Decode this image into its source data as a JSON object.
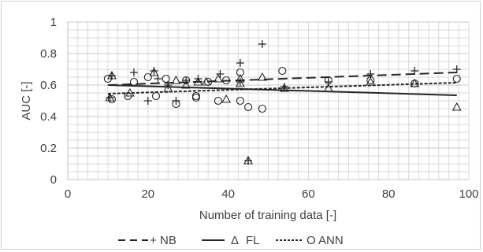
{
  "chart_data": {
    "type": "scatter",
    "title": "",
    "xlabel": "Number of training data [-]",
    "ylabel": "AUC [-]",
    "xlim": [
      0,
      100
    ],
    "ylim": [
      0,
      1
    ],
    "x_ticks": [
      "0",
      "20",
      "40",
      "60",
      "80",
      "100"
    ],
    "y_ticks": [
      "0",
      "0.2",
      "0.4",
      "0.6",
      "0.8",
      "1"
    ],
    "x_tick_values": [
      0,
      20,
      40,
      60,
      80,
      100
    ],
    "y_tick_values": [
      0,
      0.2,
      0.4,
      0.6,
      0.8,
      1
    ],
    "grid": "vertical and horizontal light gridlines",
    "legend_position": "bottom",
    "series": [
      {
        "name": "NB",
        "marker": "plus",
        "line_style": "dashed",
        "trendline": [
          [
            10,
            0.6
          ],
          [
            97,
            0.68
          ]
        ],
        "points": [
          [
            10.5,
            0.52
          ],
          [
            11,
            0.66
          ],
          [
            16.5,
            0.68
          ],
          [
            20,
            0.5
          ],
          [
            21.5,
            0.69
          ],
          [
            22.5,
            0.64
          ],
          [
            25,
            0.6
          ],
          [
            27,
            0.5
          ],
          [
            29.5,
            0.63
          ],
          [
            32.5,
            0.64
          ],
          [
            38,
            0.67
          ],
          [
            43,
            0.74
          ],
          [
            43,
            0.62
          ],
          [
            45,
            0.12
          ],
          [
            48.5,
            0.86
          ],
          [
            54,
            0.59
          ],
          [
            65,
            0.62
          ],
          [
            75.5,
            0.67
          ],
          [
            86.5,
            0.69
          ],
          [
            97,
            0.7
          ]
        ]
      },
      {
        "name": "FL",
        "marker": "triangle",
        "line_style": "solid",
        "trendline": [
          [
            10,
            0.6
          ],
          [
            97,
            0.535
          ]
        ],
        "points": [
          [
            10.5,
            0.52
          ],
          [
            11,
            0.66
          ],
          [
            15.5,
            0.55
          ],
          [
            21.5,
            0.68
          ],
          [
            25,
            0.58
          ],
          [
            27,
            0.63
          ],
          [
            29.5,
            0.6
          ],
          [
            32.5,
            0.62
          ],
          [
            34.5,
            0.62
          ],
          [
            37.5,
            0.64
          ],
          [
            39.5,
            0.51
          ],
          [
            43,
            0.61
          ],
          [
            43,
            0.64
          ],
          [
            45,
            0.12
          ],
          [
            48.5,
            0.65
          ],
          [
            54,
            0.58
          ],
          [
            65,
            0.58
          ],
          [
            75.5,
            0.62
          ],
          [
            86.5,
            0.61
          ],
          [
            97,
            0.46
          ]
        ]
      },
      {
        "name": "ANN",
        "marker": "circle",
        "line_style": "dotted",
        "trendline": [
          [
            10,
            0.545
          ],
          [
            97,
            0.615
          ]
        ],
        "points": [
          [
            10,
            0.64
          ],
          [
            11,
            0.51
          ],
          [
            15,
            0.53
          ],
          [
            16.5,
            0.62
          ],
          [
            20,
            0.65
          ],
          [
            22,
            0.53
          ],
          [
            24.5,
            0.64
          ],
          [
            27,
            0.48
          ],
          [
            29.5,
            0.63
          ],
          [
            32,
            0.53
          ],
          [
            32,
            0.52
          ],
          [
            35,
            0.62
          ],
          [
            37.5,
            0.5
          ],
          [
            39.5,
            0.63
          ],
          [
            43,
            0.68
          ],
          [
            43,
            0.5
          ],
          [
            45,
            0.46
          ],
          [
            48.5,
            0.45
          ],
          [
            53.5,
            0.69
          ],
          [
            65,
            0.63
          ],
          [
            75.5,
            0.63
          ],
          [
            86.5,
            0.61
          ],
          [
            97,
            0.64
          ]
        ]
      }
    ]
  },
  "legend": [
    {
      "symbol": "+",
      "label": "NB"
    },
    {
      "symbol": "Δ",
      "label": "FL"
    },
    {
      "symbol": "O",
      "label": "ANN"
    }
  ],
  "colors": {
    "marks": "#262626",
    "grid": "#d9d9d9",
    "axis": "#bfbfbf",
    "text": "#404040"
  }
}
